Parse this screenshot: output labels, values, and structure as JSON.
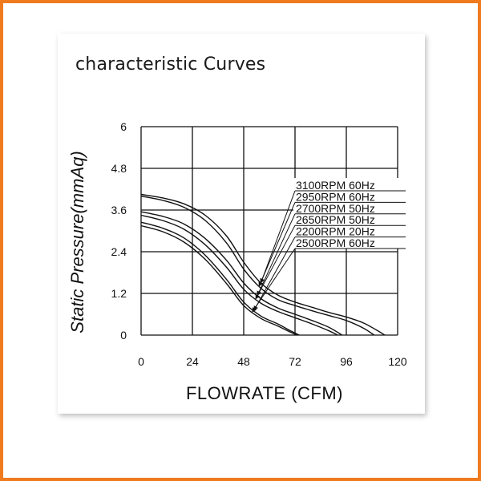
{
  "page": {
    "title": "characteristic Curves"
  },
  "chart_data": {
    "type": "line",
    "title": "characteristic Curves",
    "xlabel": "FLOWRATE (CFM)",
    "ylabel": "Static Pressure(mmAq)",
    "xlim": [
      0,
      120
    ],
    "ylim": [
      0,
      6
    ],
    "xticks": [
      0,
      24,
      48,
      72,
      96,
      120
    ],
    "yticks": [
      0,
      1.2,
      2.4,
      3.6,
      4.8,
      6
    ],
    "grid": true,
    "legend_placement": "top-right, with leader arrows to curves",
    "series": [
      {
        "name": "3100RPM 60Hz",
        "x": [
          0,
          10,
          20,
          30,
          40,
          48,
          56,
          64,
          72,
          80,
          88,
          96,
          104,
          110,
          114
        ],
        "y": [
          4.05,
          3.95,
          3.78,
          3.45,
          2.85,
          2.1,
          1.5,
          1.15,
          0.95,
          0.8,
          0.65,
          0.52,
          0.35,
          0.15,
          0
        ]
      },
      {
        "name": "2950RPM 60Hz",
        "x": [
          0,
          10,
          20,
          30,
          40,
          48,
          56,
          64,
          72,
          80,
          88,
          96,
          104,
          109
        ],
        "y": [
          4.0,
          3.88,
          3.68,
          3.3,
          2.65,
          1.9,
          1.35,
          1.02,
          0.85,
          0.7,
          0.56,
          0.42,
          0.2,
          0
        ]
      },
      {
        "name": "2700RPM 50Hz",
        "x": [
          0,
          10,
          20,
          30,
          40,
          48,
          56,
          64,
          72,
          80,
          88,
          94
        ],
        "y": [
          3.55,
          3.42,
          3.2,
          2.78,
          2.15,
          1.5,
          1.05,
          0.78,
          0.6,
          0.42,
          0.22,
          0
        ]
      },
      {
        "name": "2650RPM 50Hz",
        "x": [
          0,
          10,
          20,
          30,
          40,
          48,
          56,
          64,
          72,
          80,
          88,
          92
        ],
        "y": [
          3.45,
          3.3,
          3.05,
          2.6,
          1.95,
          1.32,
          0.92,
          0.68,
          0.5,
          0.32,
          0.12,
          0
        ]
      },
      {
        "name": "2200RPM 20Hz",
        "x": [
          0,
          10,
          20,
          30,
          40,
          48,
          56,
          64,
          70,
          74
        ],
        "y": [
          3.25,
          3.08,
          2.8,
          2.3,
          1.6,
          0.95,
          0.55,
          0.32,
          0.12,
          0
        ]
      },
      {
        "name": "2500RPM 60Hz",
        "x": [
          0,
          10,
          20,
          30,
          40,
          48,
          56,
          64,
          70,
          73
        ],
        "y": [
          3.15,
          2.98,
          2.68,
          2.18,
          1.48,
          0.85,
          0.48,
          0.26,
          0.08,
          0
        ]
      }
    ]
  }
}
